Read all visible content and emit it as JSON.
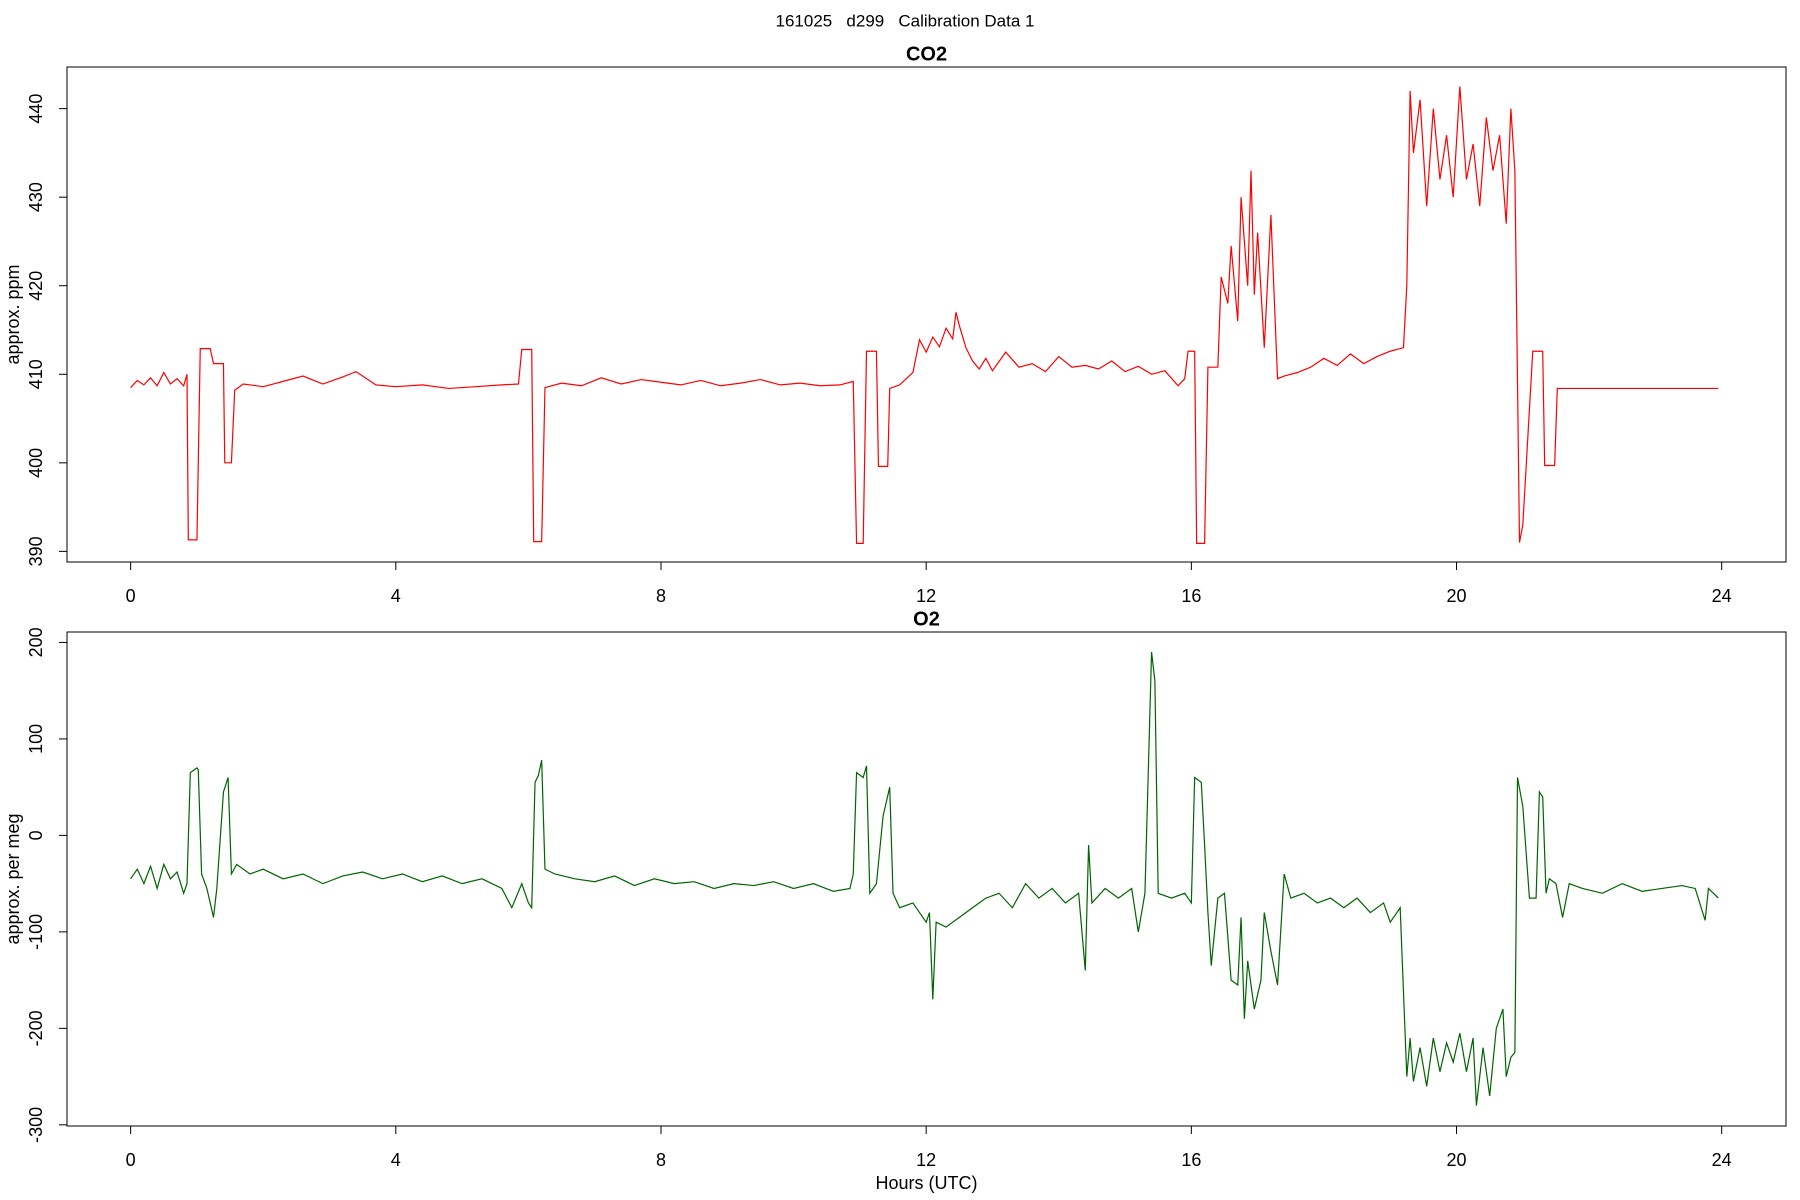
{
  "title": "161025   d299   Calibration Data 1",
  "chart_data": [
    {
      "type": "line",
      "title": "CO2",
      "ylabel": "approx. ppm",
      "color": "#ff0000",
      "xlim": [
        -0.96,
        24.97
      ],
      "xticks": [
        0,
        4,
        8,
        12,
        16,
        20,
        24
      ],
      "ylim": [
        388.8,
        444.7
      ],
      "yticks": [
        390,
        400,
        410,
        420,
        430,
        440
      ],
      "x": [
        0,
        0.1,
        0.2,
        0.3,
        0.4,
        0.5,
        0.6,
        0.7,
        0.8,
        0.85,
        0.87,
        1.0,
        1.05,
        1.2,
        1.25,
        1.4,
        1.42,
        1.52,
        1.57,
        1.7,
        2.0,
        2.3,
        2.6,
        2.9,
        3.2,
        3.4,
        3.7,
        4.0,
        4.4,
        4.8,
        5.2,
        5.6,
        5.85,
        5.9,
        6.05,
        6.08,
        6.2,
        6.25,
        6.5,
        6.8,
        7.1,
        7.4,
        7.7,
        8.0,
        8.3,
        8.6,
        8.9,
        9.2,
        9.5,
        9.8,
        10.1,
        10.4,
        10.7,
        10.9,
        10.95,
        11.05,
        11.1,
        11.25,
        11.28,
        11.42,
        11.45,
        11.6,
        11.8,
        11.9,
        12.0,
        12.1,
        12.2,
        12.3,
        12.4,
        12.45,
        12.5,
        12.6,
        12.7,
        12.8,
        12.9,
        13.0,
        13.2,
        13.4,
        13.6,
        13.8,
        14.0,
        14.2,
        14.4,
        14.6,
        14.8,
        15.0,
        15.2,
        15.4,
        15.6,
        15.8,
        15.9,
        15.95,
        16.05,
        16.08,
        16.2,
        16.25,
        16.4,
        16.45,
        16.55,
        16.6,
        16.7,
        16.75,
        16.85,
        16.9,
        16.95,
        17.0,
        17.1,
        17.2,
        17.3,
        17.4,
        17.6,
        17.8,
        18.0,
        18.2,
        18.4,
        18.6,
        18.8,
        19.0,
        19.2,
        19.25,
        19.3,
        19.35,
        19.45,
        19.55,
        19.65,
        19.75,
        19.85,
        19.95,
        20.05,
        20.15,
        20.25,
        20.35,
        20.45,
        20.55,
        20.65,
        20.75,
        20.82,
        20.88,
        20.95,
        21.0,
        21.15,
        21.3,
        21.33,
        21.48,
        21.52,
        22,
        23,
        23.95
      ],
      "values": [
        408.5,
        409.3,
        408.8,
        409.6,
        408.7,
        410.2,
        408.9,
        409.5,
        408.7,
        410.0,
        391.3,
        391.3,
        412.9,
        412.9,
        411.2,
        411.2,
        400.0,
        400.0,
        408.2,
        408.9,
        408.6,
        409.2,
        409.8,
        408.9,
        409.7,
        410.3,
        408.8,
        408.6,
        408.8,
        408.4,
        408.6,
        408.8,
        408.9,
        412.8,
        412.8,
        391.1,
        391.1,
        408.5,
        409.0,
        408.7,
        409.6,
        408.9,
        409.4,
        409.1,
        408.8,
        409.3,
        408.7,
        409.0,
        409.4,
        408.8,
        409.0,
        408.7,
        408.8,
        409.2,
        390.9,
        390.9,
        412.6,
        412.6,
        399.6,
        399.6,
        408.4,
        408.8,
        410.2,
        413.9,
        412.5,
        414.2,
        413.1,
        415.2,
        414.0,
        417.0,
        415.5,
        413.0,
        411.5,
        410.6,
        411.8,
        410.4,
        412.5,
        410.8,
        411.2,
        410.3,
        412.0,
        410.8,
        411.0,
        410.6,
        411.5,
        410.3,
        410.9,
        410.0,
        410.4,
        408.7,
        409.5,
        412.6,
        412.6,
        390.9,
        390.9,
        410.8,
        410.8,
        421.0,
        418.0,
        424.5,
        416.0,
        430.0,
        420.0,
        433.0,
        419.0,
        426.0,
        413.0,
        428.0,
        409.5,
        409.8,
        410.2,
        410.8,
        411.8,
        411.0,
        412.3,
        411.2,
        412.0,
        412.6,
        413.0,
        420.0,
        442.0,
        435.0,
        441.0,
        429.0,
        440.0,
        432.0,
        437.0,
        430.0,
        442.5,
        432.0,
        436.0,
        429.0,
        439.0,
        433.0,
        437.0,
        427.0,
        440.0,
        433.0,
        391.0,
        393.0,
        412.6,
        412.6,
        399.7,
        399.7,
        408.4,
        408.4,
        408.4,
        408.4
      ]
    },
    {
      "type": "line",
      "title": "O2",
      "ylabel": "approx. per meg",
      "xlabel": "Hours (UTC)",
      "color": "#006400",
      "xlim": [
        -0.96,
        24.97
      ],
      "xticks": [
        0,
        4,
        8,
        12,
        16,
        20,
        24
      ],
      "ylim": [
        -301.2,
        210.8
      ],
      "yticks": [
        -300,
        -200,
        -100,
        0,
        100,
        200
      ],
      "x": [
        0,
        0.1,
        0.2,
        0.3,
        0.4,
        0.5,
        0.6,
        0.7,
        0.8,
        0.85,
        0.9,
        1.0,
        1.02,
        1.07,
        1.15,
        1.25,
        1.3,
        1.4,
        1.47,
        1.52,
        1.6,
        1.8,
        2.0,
        2.3,
        2.6,
        2.9,
        3.2,
        3.5,
        3.8,
        4.1,
        4.4,
        4.7,
        5.0,
        5.3,
        5.6,
        5.75,
        5.9,
        6.0,
        6.05,
        6.1,
        6.15,
        6.2,
        6.25,
        6.4,
        6.7,
        7.0,
        7.3,
        7.6,
        7.9,
        8.2,
        8.5,
        8.8,
        9.1,
        9.4,
        9.7,
        10.0,
        10.3,
        10.6,
        10.85,
        10.9,
        10.95,
        11.05,
        11.1,
        11.15,
        11.25,
        11.35,
        11.45,
        11.5,
        11.6,
        11.8,
        12.0,
        12.05,
        12.1,
        12.15,
        12.3,
        12.5,
        12.7,
        12.9,
        13.1,
        13.3,
        13.5,
        13.7,
        13.9,
        14.1,
        14.3,
        14.4,
        14.45,
        14.5,
        14.7,
        14.9,
        15.1,
        15.2,
        15.3,
        15.4,
        15.45,
        15.5,
        15.7,
        15.9,
        16.0,
        16.05,
        16.15,
        16.2,
        16.25,
        16.3,
        16.4,
        16.5,
        16.6,
        16.7,
        16.75,
        16.8,
        16.85,
        16.95,
        17.05,
        17.1,
        17.2,
        17.3,
        17.4,
        17.5,
        17.7,
        17.9,
        18.1,
        18.3,
        18.5,
        18.7,
        18.9,
        19.0,
        19.15,
        19.25,
        19.3,
        19.35,
        19.45,
        19.55,
        19.65,
        19.75,
        19.85,
        19.95,
        20.05,
        20.15,
        20.25,
        20.3,
        20.4,
        20.5,
        20.6,
        20.7,
        20.75,
        20.82,
        20.88,
        20.92,
        21.0,
        21.1,
        21.2,
        21.25,
        21.3,
        21.35,
        21.4,
        21.5,
        21.6,
        21.7,
        21.9,
        22.2,
        22.5,
        22.8,
        23.1,
        23.4,
        23.6,
        23.75,
        23.8,
        23.95
      ],
      "values": [
        -45,
        -35,
        -50,
        -32,
        -55,
        -30,
        -45,
        -38,
        -60,
        -50,
        65,
        70,
        68,
        -40,
        -55,
        -85,
        -55,
        45,
        60,
        -40,
        -30,
        -40,
        -35,
        -45,
        -40,
        -50,
        -42,
        -38,
        -45,
        -40,
        -48,
        -42,
        -50,
        -45,
        -55,
        -75,
        -50,
        -70,
        -75,
        55,
        62,
        78,
        -35,
        -40,
        -45,
        -48,
        -42,
        -52,
        -45,
        -50,
        -48,
        -55,
        -50,
        -52,
        -48,
        -55,
        -50,
        -58,
        -55,
        -40,
        65,
        60,
        72,
        -60,
        -50,
        20,
        50,
        -60,
        -75,
        -70,
        -90,
        -80,
        -170,
        -90,
        -95,
        -85,
        -75,
        -65,
        -60,
        -75,
        -50,
        -65,
        -55,
        -70,
        -60,
        -140,
        -10,
        -70,
        -55,
        -65,
        -55,
        -100,
        -60,
        190,
        160,
        -60,
        -65,
        -60,
        -70,
        60,
        55,
        -10,
        -80,
        -135,
        -65,
        -60,
        -150,
        -155,
        -85,
        -190,
        -130,
        -180,
        -150,
        -80,
        -120,
        -155,
        -40,
        -65,
        -60,
        -70,
        -65,
        -75,
        -65,
        -80,
        -70,
        -90,
        -75,
        -250,
        -210,
        -255,
        -220,
        -260,
        -210,
        -245,
        -215,
        -235,
        -205,
        -245,
        -210,
        -280,
        -220,
        -270,
        -200,
        -180,
        -250,
        -230,
        -225,
        60,
        30,
        -65,
        -65,
        45,
        40,
        -60,
        -45,
        -50,
        -85,
        -50,
        -55,
        -60,
        -50,
        -58,
        -55,
        -52,
        -55,
        -88,
        -55,
        -65
      ]
    }
  ]
}
